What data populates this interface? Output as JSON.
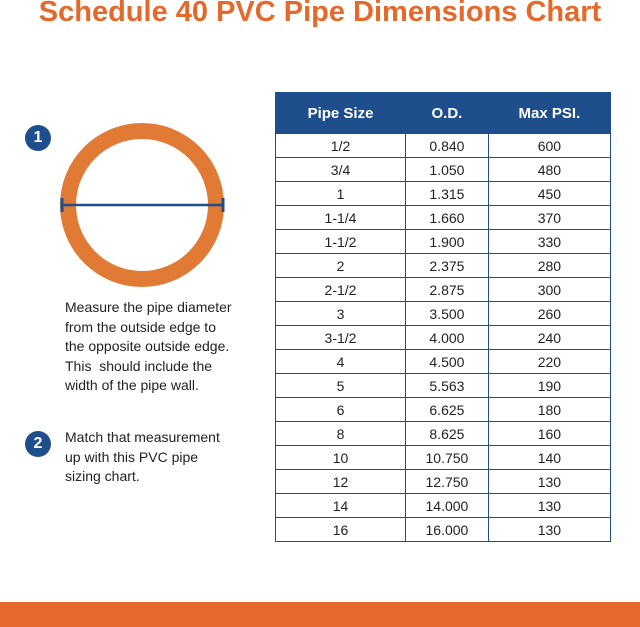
{
  "header": {
    "title": "Schedule 40 PVC Pipe Dimensions Chart"
  },
  "steps": [
    {
      "number": "1",
      "lines": [
        "Measure the pipe diameter",
        "from the outside edge to",
        "the opposite outside edge.",
        "This  should include the",
        "width of the pipe wall."
      ]
    },
    {
      "number": "2",
      "lines": [
        "Match that measurement",
        "up with this PVC pipe",
        "sizing chart."
      ]
    }
  ],
  "table": {
    "columns": [
      "Pipe Size",
      "O.D.",
      "Max PSI."
    ],
    "rows": [
      [
        "1/2",
        "0.840",
        600
      ],
      [
        "3/4",
        "1.050",
        480
      ],
      [
        "1",
        "1.315",
        450
      ],
      [
        "1-1/4",
        "1.660",
        370
      ],
      [
        "1-1/2",
        "1.900",
        330
      ],
      [
        "2",
        "2.375",
        280
      ],
      [
        "2-1/2",
        "2.875",
        300
      ],
      [
        "3",
        "3.500",
        260
      ],
      [
        "3-1/2",
        "4.000",
        240
      ],
      [
        "4",
        "4.500",
        220
      ],
      [
        "5",
        "5.563",
        190
      ],
      [
        "6",
        "6.625",
        180
      ],
      [
        "8",
        "8.625",
        160
      ],
      [
        "10",
        "10.750",
        140
      ],
      [
        "12",
        "12.750",
        130
      ],
      [
        "14",
        "14.000",
        130
      ],
      [
        "16",
        "16.000",
        130
      ]
    ]
  }
}
